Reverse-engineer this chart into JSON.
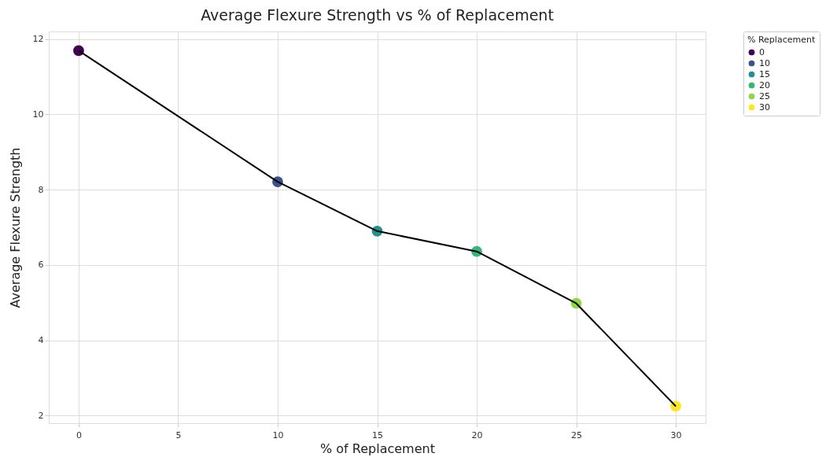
{
  "chart_data": {
    "type": "scatter",
    "title": "Average Flexure Strength vs % of Replacement",
    "xlabel": "% of Replacement",
    "ylabel": "Average Flexure Strength",
    "legend_title": "% Replacement",
    "xlim": [
      -1.5,
      31.5
    ],
    "xticks": [
      0,
      5,
      10,
      15,
      20,
      25,
      30
    ],
    "ylim": [
      1.8,
      12.2
    ],
    "yticks": [
      2,
      4,
      6,
      8,
      10,
      12
    ],
    "grid": true,
    "legend": "top right",
    "marker": "circle",
    "series": [
      {
        "type": "line",
        "color": "#000000",
        "marker": "none",
        "line_style": "solid",
        "x": [
          0,
          10,
          15,
          20,
          25,
          30
        ],
        "values": [
          11.69,
          8.21,
          6.9,
          6.36,
          4.98,
          2.25
        ]
      },
      {
        "name": "0",
        "color": "#440154",
        "x": [
          0
        ],
        "values": [
          11.69
        ]
      },
      {
        "name": "10",
        "color": "#3b528b",
        "x": [
          10
        ],
        "values": [
          8.21
        ]
      },
      {
        "name": "15",
        "color": "#21918c",
        "x": [
          15
        ],
        "values": [
          6.9
        ]
      },
      {
        "name": "20",
        "color": "#35b779",
        "x": [
          20
        ],
        "values": [
          6.36
        ]
      },
      {
        "name": "25",
        "color": "#8fd744",
        "x": [
          25
        ],
        "values": [
          4.98
        ]
      },
      {
        "name": "30",
        "color": "#fde725",
        "x": [
          30
        ],
        "values": [
          2.25
        ]
      }
    ]
  }
}
